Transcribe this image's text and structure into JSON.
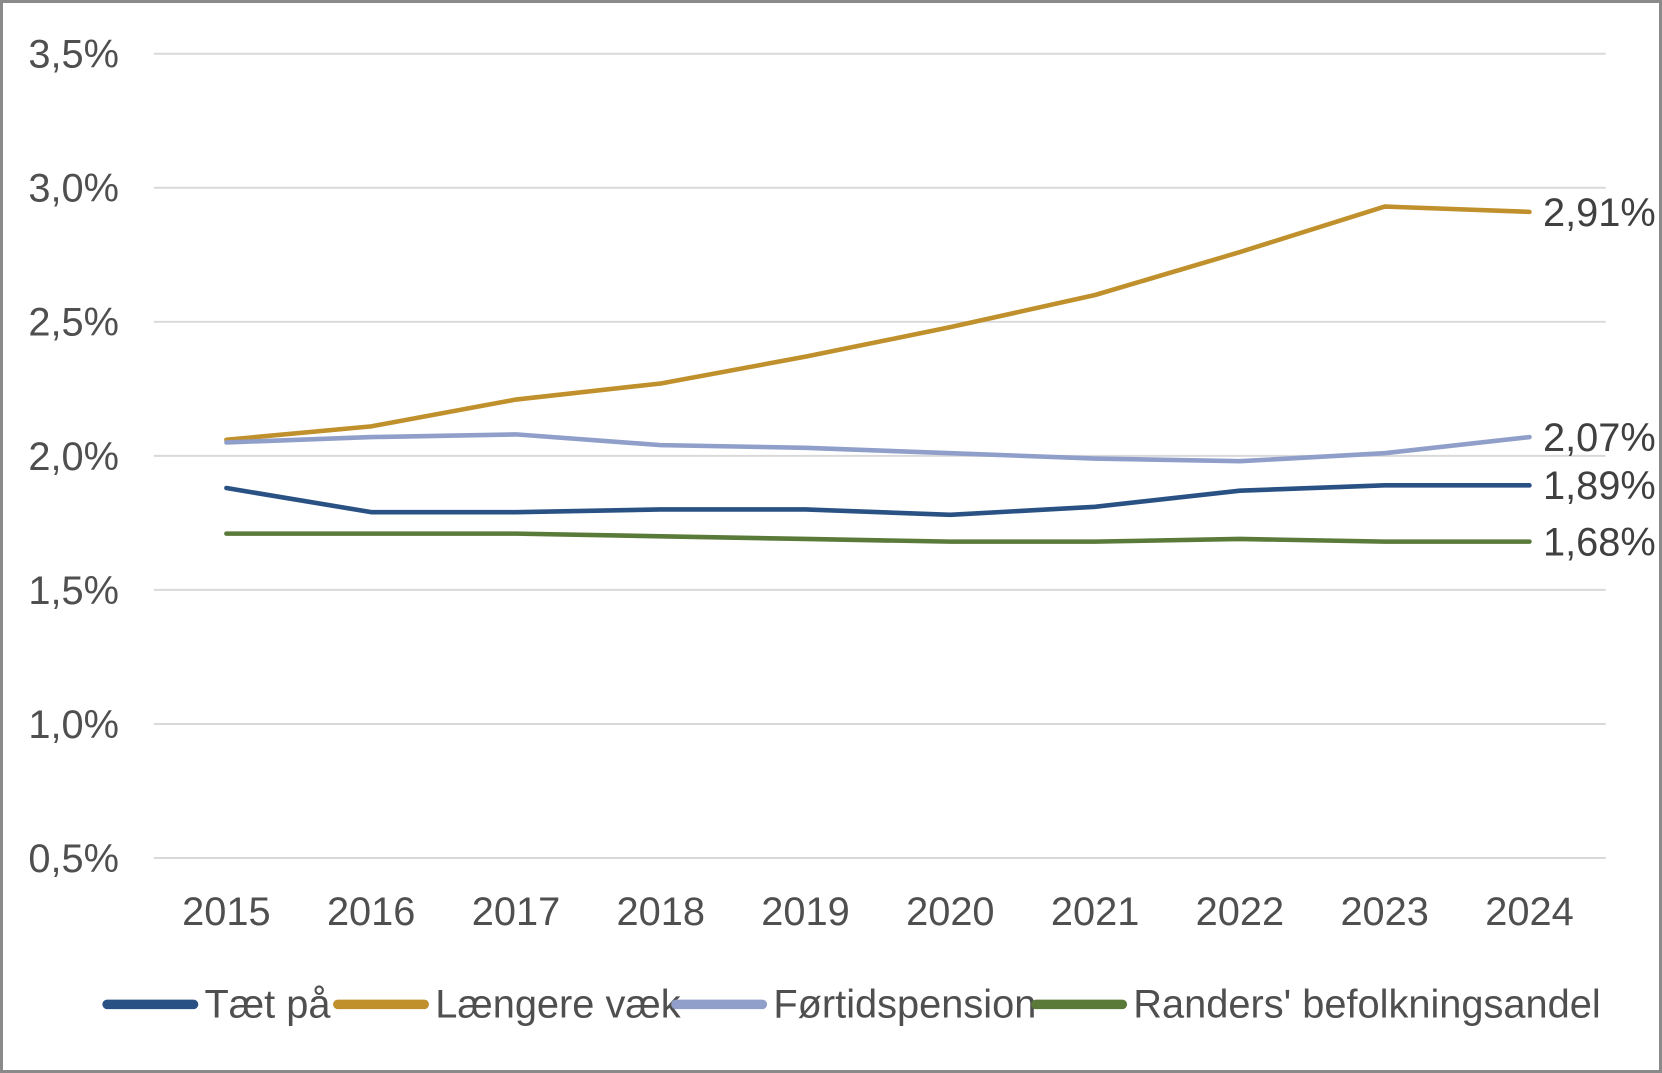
{
  "chart_data": {
    "type": "line",
    "title": "",
    "xlabel": "",
    "ylabel": "",
    "categories": [
      "2015",
      "2016",
      "2017",
      "2018",
      "2019",
      "2020",
      "2021",
      "2022",
      "2023",
      "2024"
    ],
    "series": [
      {
        "name": "Tæt på",
        "color": "#2a5183",
        "values": [
          1.88,
          1.79,
          1.79,
          1.8,
          1.8,
          1.78,
          1.81,
          1.87,
          1.89,
          1.89
        ],
        "end_label": "1,89%"
      },
      {
        "name": "Længere væk",
        "color": "#c0902c",
        "values": [
          2.06,
          2.11,
          2.21,
          2.27,
          2.37,
          2.48,
          2.6,
          2.76,
          2.93,
          2.91
        ],
        "end_label": "2,91%"
      },
      {
        "name": "Førtidspension",
        "color": "#8f9fc9",
        "values": [
          2.05,
          2.07,
          2.08,
          2.04,
          2.03,
          2.01,
          1.99,
          1.98,
          2.01,
          2.07
        ],
        "end_label": "2,07%"
      },
      {
        "name": "Randers' befolkningsandel",
        "color": "#5a7a39",
        "values": [
          1.71,
          1.71,
          1.71,
          1.7,
          1.69,
          1.68,
          1.68,
          1.69,
          1.68,
          1.68
        ],
        "end_label": "1,68%"
      }
    ],
    "y_ticks": [
      "3,5%",
      "3,0%",
      "2,5%",
      "2,0%",
      "1,5%",
      "1,0%",
      "0,5%"
    ],
    "y_tick_values": [
      3.5,
      3.0,
      2.5,
      2.0,
      1.5,
      1.0,
      0.5
    ],
    "ylim": [
      0.5,
      3.5
    ],
    "grid": "horizontal",
    "legend_position": "bottom",
    "number_format": "danish-percent",
    "colors": {
      "gridline": "#d9d9d9",
      "axis_text": "#4f4f4f",
      "data_label_text": "#404040",
      "background": "#ffffff",
      "frame_border": "#8a8a8a"
    }
  }
}
